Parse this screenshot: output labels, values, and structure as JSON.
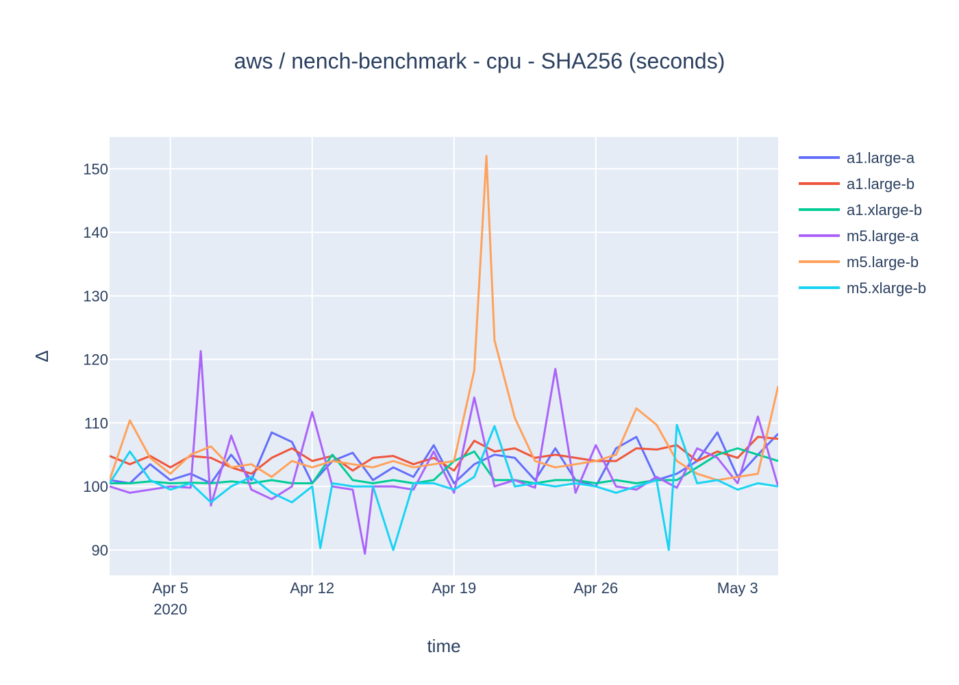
{
  "chart_data": {
    "type": "line",
    "title": "aws / nench-benchmark - cpu - SHA256 (seconds)",
    "xlabel": "time",
    "ylabel": "Δ",
    "x_range": [
      "2020-04-02",
      "2020-05-05"
    ],
    "ylim": [
      86,
      155
    ],
    "grid": true,
    "legend_position": "right",
    "x_ticks": [
      {
        "date": "2020-04-05",
        "label": "Apr 5",
        "sublabel": "2020"
      },
      {
        "date": "2020-04-12",
        "label": "Apr 12",
        "sublabel": ""
      },
      {
        "date": "2020-04-19",
        "label": "Apr 19",
        "sublabel": ""
      },
      {
        "date": "2020-04-26",
        "label": "Apr 26",
        "sublabel": ""
      },
      {
        "date": "2020-05-03",
        "label": "May 3",
        "sublabel": ""
      }
    ],
    "y_ticks": [
      90,
      100,
      110,
      120,
      130,
      140,
      150
    ],
    "series": [
      {
        "name": "a1.large-a",
        "color": "#636efa",
        "x": [
          "2020-04-02",
          "2020-04-03",
          "2020-04-04",
          "2020-04-05",
          "2020-04-06",
          "2020-04-07",
          "2020-04-08",
          "2020-04-09",
          "2020-04-10",
          "2020-04-11",
          "2020-04-12",
          "2020-04-13",
          "2020-04-14",
          "2020-04-15",
          "2020-04-16",
          "2020-04-17",
          "2020-04-18",
          "2020-04-19",
          "2020-04-20",
          "2020-04-21",
          "2020-04-22",
          "2020-04-23",
          "2020-04-24",
          "2020-04-25",
          "2020-04-26",
          "2020-04-27",
          "2020-04-28",
          "2020-04-29",
          "2020-04-30",
          "2020-05-01",
          "2020-05-02",
          "2020-05-03",
          "2020-05-04",
          "2020-05-05"
        ],
        "values": [
          101,
          100.5,
          103.5,
          101,
          102,
          100.5,
          105,
          101,
          108.5,
          107,
          100.5,
          104,
          105.3,
          101,
          103,
          101.5,
          106.5,
          100.5,
          103.5,
          105,
          104.5,
          101,
          106,
          101,
          100,
          106,
          107.8,
          101,
          102,
          104,
          108.5,
          101.5,
          105,
          108.3
        ]
      },
      {
        "name": "a1.large-b",
        "color": "#ef553b",
        "x": [
          "2020-04-02",
          "2020-04-03",
          "2020-04-04",
          "2020-04-05",
          "2020-04-06",
          "2020-04-07",
          "2020-04-08",
          "2020-04-09",
          "2020-04-10",
          "2020-04-11",
          "2020-04-12",
          "2020-04-13",
          "2020-04-14",
          "2020-04-15",
          "2020-04-16",
          "2020-04-17",
          "2020-04-18",
          "2020-04-19",
          "2020-04-20",
          "2020-04-21",
          "2020-04-22",
          "2020-04-23",
          "2020-04-24",
          "2020-04-25",
          "2020-04-26",
          "2020-04-27",
          "2020-04-28",
          "2020-04-29",
          "2020-04-30",
          "2020-05-01",
          "2020-05-02",
          "2020-05-03",
          "2020-05-04",
          "2020-05-05"
        ],
        "values": [
          104.8,
          103.5,
          104.8,
          103,
          104.8,
          104.5,
          103,
          102,
          104.5,
          106,
          104,
          104.8,
          102.5,
          104.5,
          104.8,
          103.5,
          104.5,
          102.5,
          107.2,
          105.5,
          106,
          104.5,
          105,
          104.5,
          104,
          104,
          106,
          105.8,
          106.5,
          104,
          105.5,
          104.5,
          107.8,
          107.5
        ]
      },
      {
        "name": "a1.xlarge-b",
        "color": "#00cc96",
        "x": [
          "2020-04-02",
          "2020-04-03",
          "2020-04-04",
          "2020-04-05",
          "2020-04-06",
          "2020-04-07",
          "2020-04-08",
          "2020-04-09",
          "2020-04-10",
          "2020-04-11",
          "2020-04-12",
          "2020-04-13",
          "2020-04-14",
          "2020-04-15",
          "2020-04-16",
          "2020-04-17",
          "2020-04-18",
          "2020-04-19",
          "2020-04-20",
          "2020-04-21",
          "2020-04-22",
          "2020-04-23",
          "2020-04-24",
          "2020-04-25",
          "2020-04-26",
          "2020-04-27",
          "2020-04-28",
          "2020-04-29",
          "2020-04-30",
          "2020-05-01",
          "2020-05-02",
          "2020-05-03",
          "2020-05-04",
          "2020-05-05"
        ],
        "values": [
          100.5,
          100.5,
          100.8,
          100.5,
          100.6,
          100.5,
          100.8,
          100.5,
          101,
          100.5,
          100.5,
          105,
          101,
          100.5,
          101,
          100.5,
          101,
          104,
          105.5,
          101,
          101,
          100.5,
          101,
          101,
          100.5,
          101,
          100.5,
          101,
          101,
          103,
          105,
          106,
          105,
          104
        ]
      },
      {
        "name": "m5.large-a",
        "color": "#ab63fa",
        "x": [
          "2020-04-02",
          "2020-04-03",
          "2020-04-04",
          "2020-04-05",
          "2020-04-06",
          "2020-04-06.5",
          "2020-04-07",
          "2020-04-08",
          "2020-04-09",
          "2020-04-10",
          "2020-04-11",
          "2020-04-12",
          "2020-04-13",
          "2020-04-14",
          "2020-04-14.6",
          "2020-04-15",
          "2020-04-16",
          "2020-04-17",
          "2020-04-18",
          "2020-04-19",
          "2020-04-20",
          "2020-04-21",
          "2020-04-22",
          "2020-04-23",
          "2020-04-24",
          "2020-04-25",
          "2020-04-26",
          "2020-04-27",
          "2020-04-28",
          "2020-04-29",
          "2020-04-30",
          "2020-05-01",
          "2020-05-02",
          "2020-05-03",
          "2020-05-04",
          "2020-05-05"
        ],
        "values": [
          100,
          99,
          99.5,
          100,
          99.8,
          121.3,
          97,
          108,
          99.5,
          98,
          100,
          111.7,
          100,
          99.5,
          89.4,
          100,
          100,
          99.5,
          105.5,
          99,
          114,
          100,
          101,
          99.8,
          118.5,
          99,
          106.5,
          100,
          99.5,
          101.5,
          99.8,
          106,
          104.5,
          100.5,
          111,
          100
        ]
      },
      {
        "name": "m5.large-b",
        "color": "#ffa15a",
        "x": [
          "2020-04-02",
          "2020-04-03",
          "2020-04-04",
          "2020-04-05",
          "2020-04-06",
          "2020-04-07",
          "2020-04-08",
          "2020-04-09",
          "2020-04-10",
          "2020-04-11",
          "2020-04-12",
          "2020-04-13",
          "2020-04-14",
          "2020-04-15",
          "2020-04-16",
          "2020-04-17",
          "2020-04-18",
          "2020-04-19",
          "2020-04-20",
          "2020-04-20.6",
          "2020-04-21",
          "2020-04-22",
          "2020-04-23",
          "2020-04-24",
          "2020-04-25",
          "2020-04-26",
          "2020-04-27",
          "2020-04-28",
          "2020-04-29",
          "2020-04-30",
          "2020-05-01",
          "2020-05-02",
          "2020-05-03",
          "2020-05-04",
          "2020-05-05"
        ],
        "values": [
          101,
          110.4,
          104.5,
          102,
          105,
          106.3,
          103,
          103.5,
          101.5,
          104,
          103,
          104,
          103.5,
          103,
          104,
          103,
          103.5,
          104,
          118.3,
          152,
          123,
          110.8,
          104,
          103,
          103.5,
          104,
          105,
          112.3,
          109.7,
          104,
          102,
          101,
          101.5,
          102,
          115.8
        ]
      },
      {
        "name": "m5.xlarge-b",
        "color": "#19d3f3",
        "x": [
          "2020-04-02",
          "2020-04-03",
          "2020-04-04",
          "2020-04-05",
          "2020-04-06",
          "2020-04-07",
          "2020-04-08",
          "2020-04-09",
          "2020-04-10",
          "2020-04-11",
          "2020-04-12",
          "2020-04-12.4",
          "2020-04-13",
          "2020-04-14",
          "2020-04-15",
          "2020-04-16",
          "2020-04-17",
          "2020-04-18",
          "2020-04-19",
          "2020-04-20",
          "2020-04-21",
          "2020-04-22",
          "2020-04-23",
          "2020-04-24",
          "2020-04-25",
          "2020-04-26",
          "2020-04-27",
          "2020-04-28",
          "2020-04-29",
          "2020-04-29.6",
          "2020-04-30",
          "2020-05-01",
          "2020-05-02",
          "2020-05-03",
          "2020-05-04",
          "2020-05-05"
        ],
        "values": [
          100.5,
          105.5,
          101,
          99.5,
          100.5,
          97.5,
          100,
          101.5,
          99,
          97.5,
          100,
          90.3,
          100.5,
          100,
          100,
          90,
          100.5,
          100.5,
          99.5,
          101.5,
          109.5,
          100,
          100.5,
          100,
          100.5,
          100,
          99,
          100,
          101,
          90,
          109.7,
          100.5,
          101,
          99.5,
          100.5,
          100
        ]
      }
    ]
  }
}
